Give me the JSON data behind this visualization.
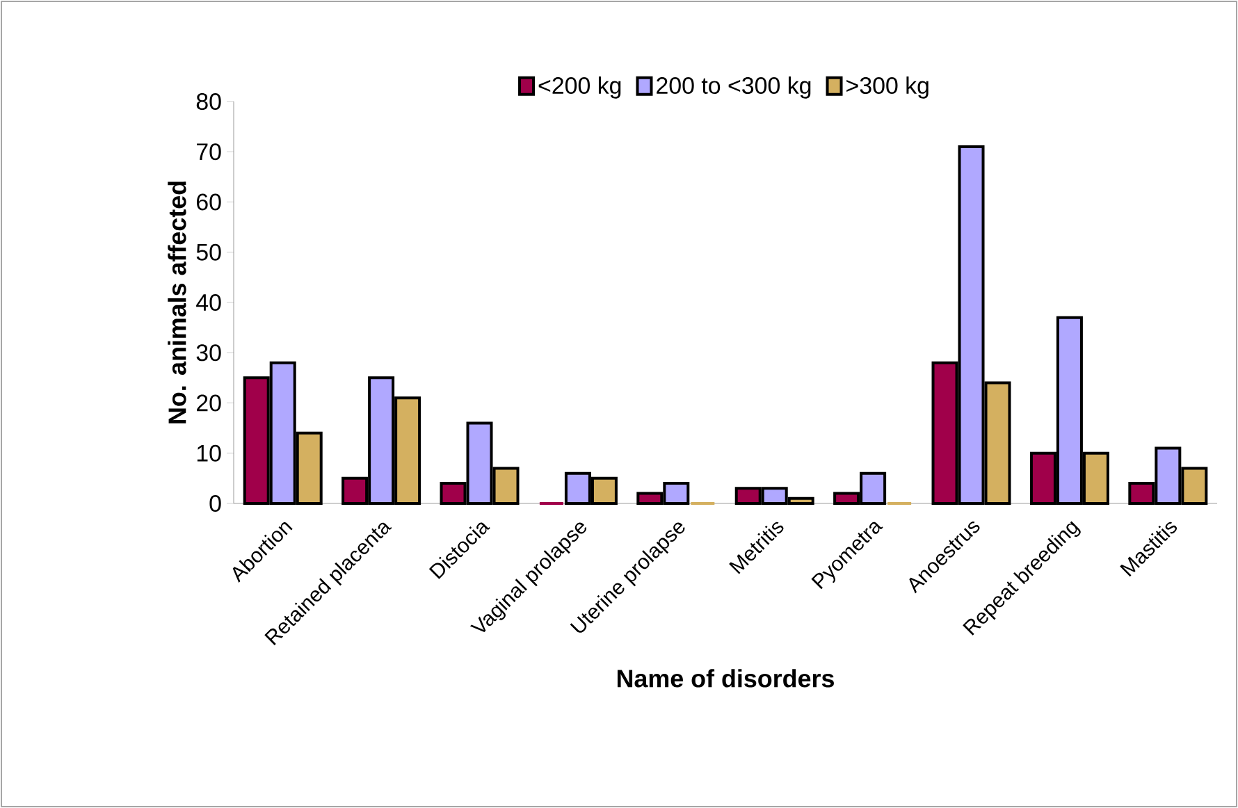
{
  "chart_data": {
    "type": "bar",
    "xlabel": "Name of disorders",
    "ylabel": "No. animals affected",
    "categories": [
      "Abortion",
      "Retained placenta",
      "Distocia",
      "Vaginal prolapse",
      "Uterine prolapse",
      "Metritis",
      "Pyometra",
      "Anoestrus",
      "Repeat breeding",
      "Mastitis"
    ],
    "series": [
      {
        "name": "<200 kg",
        "color": "#a0004a",
        "values": [
          25,
          5,
          4,
          0,
          2,
          3,
          2,
          28,
          10,
          4
        ]
      },
      {
        "name": "200 to <300 kg",
        "color": "#b0a8ff",
        "values": [
          28,
          25,
          16,
          6,
          4,
          3,
          6,
          71,
          37,
          11
        ]
      },
      {
        "name": ">300 kg",
        "color": "#d4b060",
        "values": [
          14,
          21,
          7,
          5,
          0,
          1,
          0,
          24,
          10,
          7
        ]
      }
    ],
    "ylim": [
      0,
      80
    ],
    "yticks": [
      0,
      10,
      20,
      30,
      40,
      50,
      60,
      70,
      80
    ],
    "grid": false,
    "legend": "top"
  }
}
